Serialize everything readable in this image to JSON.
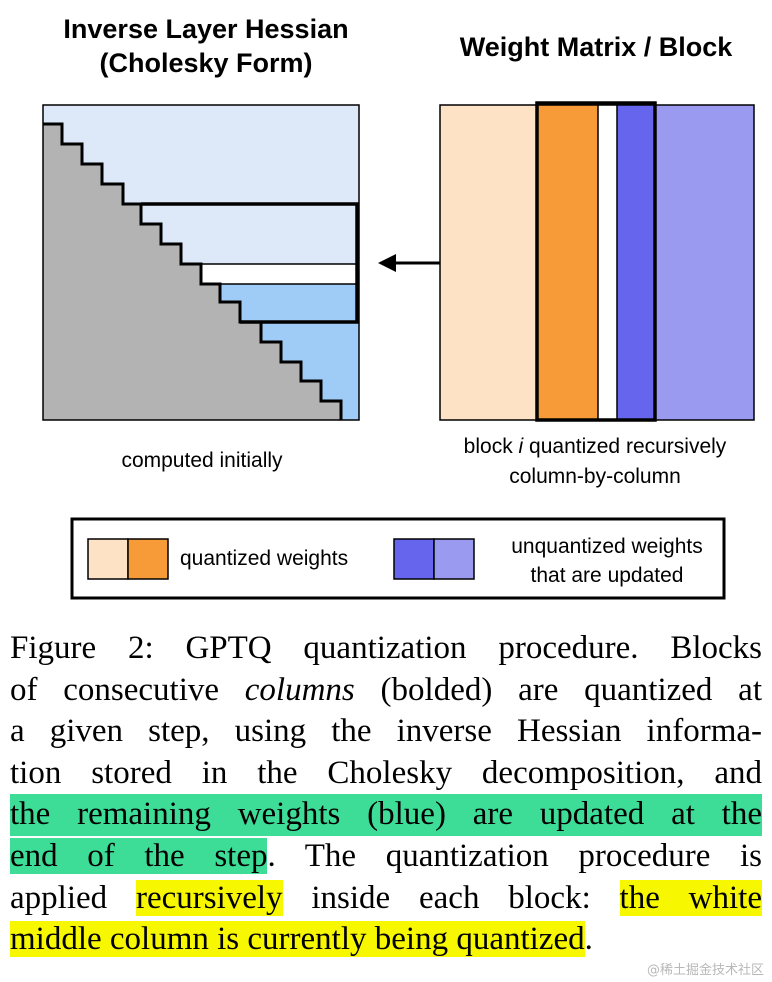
{
  "figure": {
    "left_title_line1": "Inverse Layer Hessian",
    "left_title_line2": "(Cholesky Form)",
    "right_title": "Weight Matrix / Block",
    "left_label": "computed initially",
    "right_label_line1": "block i quantized recursively",
    "right_label_line1_pre": "block ",
    "right_label_line1_italic": "i",
    "right_label_line1_post": " quantized recursively",
    "right_label_line2": "column-by-column",
    "legend": {
      "quantized": "quantized weights",
      "unquantized_line1": "unquantized weights",
      "unquantized_line2": "that are updated"
    },
    "colors": {
      "light_blue": "#dde8f8",
      "mid_blue": "#9fccf7",
      "gray": "#b3b3b3",
      "peach": "#fde2c6",
      "orange": "#f79a38",
      "blue": "#6565ee",
      "lavender": "#9a9af0",
      "highlight_green": "#3ddc97",
      "highlight_yellow": "#f7f700"
    }
  },
  "caption": {
    "l1": "Figure 2: GPTQ quantization procedure. Blocks",
    "l2_pre": "of consecutive ",
    "l2_em": "columns",
    "l2_post": " (bolded) are quantized at",
    "l3": "a given step, using the inverse Hessian informa-",
    "l4": "tion stored in the Cholesky decomposition, and",
    "l5_hl": "the remaining weights (blue) are updated at the",
    "l6_hl": "end of the step",
    "l6_post": ".  The quantization procedure is",
    "l7_pre": "applied ",
    "l7_hl": "recursively",
    "l7_mid": " inside each block: ",
    "l7_hl2": "the white",
    "l8_hl": "middle column is currently being quantized",
    "l8_post": "."
  },
  "watermark": "@稀土掘金技术社区"
}
